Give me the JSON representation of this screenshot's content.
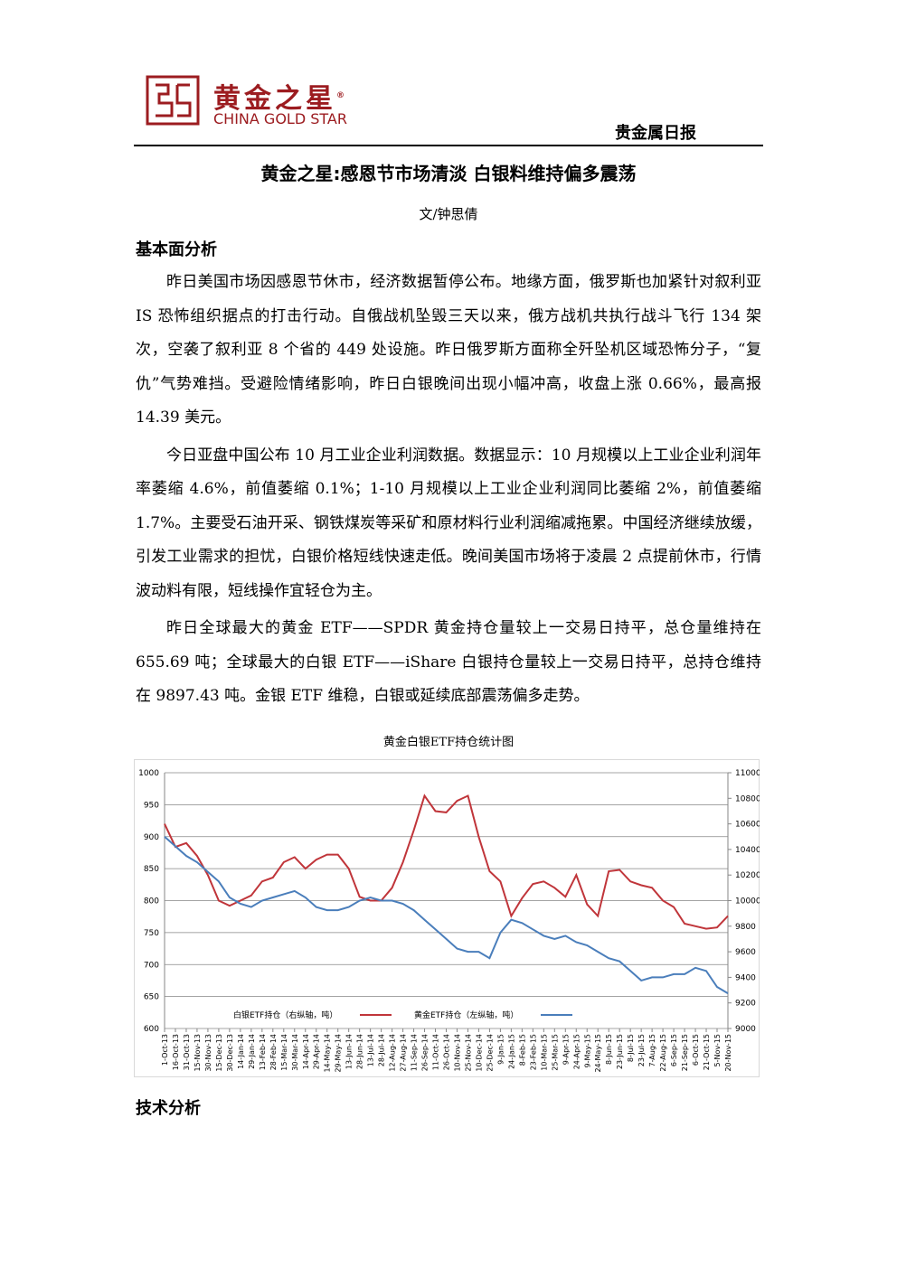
{
  "header": {
    "logo_cn": "黄金之星",
    "logo_mark": "®",
    "logo_en": "CHINA GOLD STAR",
    "report": "贵金属日报"
  },
  "title": "黄金之星:感恩节市场清淡 白银料维持偏多震荡",
  "author": "文/钟思倩",
  "sections": [
    {
      "heading": "基本面分析",
      "paragraphs": [
        "昨日美国市场因感恩节休市，经济数据暂停公布。地缘方面，俄罗斯也加紧针对叙利亚 IS 恐怖组织据点的打击行动。自俄战机坠毁三天以来，俄方战机共执行战斗飞行 134 架次，空袭了叙利亚 8 个省的 449 处设施。昨日俄罗斯方面称全歼坠机区域恐怖分子，“复仇”气势难挡。受避险情绪影响，昨日白银晚间出现小幅冲高，收盘上涨 0.66%，最高报 14.39 美元。",
        "今日亚盘中国公布 10 月工业企业利润数据。数据显示：10 月规模以上工业企业利润年率萎缩 4.6%，前值萎缩 0.1%；1-10 月规模以上工业企业利润同比萎缩 2%，前值萎缩 1.7%。主要受石油开采、钢铁煤炭等采矿和原材料行业利润缩减拖累。中国经济继续放缓，引发工业需求的担忧，白银价格短线快速走低。晚间美国市场将于凌晨 2 点提前休市，行情波动料有限，短线操作宜轻仓为主。",
        "昨日全球最大的黄金 ETF——SPDR 黄金持仓量较上一交易日持平，总仓量维持在 655.69 吨；全球最大的白银 ETF——iShare 白银持仓量较上一交易日持平，总持仓维持在 9897.43 吨。金银 ETF 维稳，白银或延续底部震荡偏多走势。"
      ]
    },
    {
      "heading": "技术分析",
      "paragraphs": []
    }
  ],
  "chart_data": {
    "type": "line",
    "title": "黄金白银ETF持仓统计图",
    "categories": [
      "1-Oct-13",
      "16-Oct-13",
      "31-Oct-13",
      "15-Nov-13",
      "30-Nov-13",
      "15-Dec-13",
      "30-Dec-13",
      "14-Jan-14",
      "29-Jan-14",
      "13-Feb-14",
      "28-Feb-14",
      "15-Mar-14",
      "30-Mar-14",
      "14-Apr-14",
      "29-Apr-14",
      "14-May-14",
      "29-May-14",
      "13-Jun-14",
      "28-Jun-14",
      "13-Jul-14",
      "28-Jul-14",
      "12-Aug-14",
      "27-Aug-14",
      "11-Sep-14",
      "26-Sep-14",
      "11-Oct-14",
      "26-Oct-14",
      "10-Nov-14",
      "25-Nov-14",
      "10-Dec-14",
      "25-Dec-14",
      "9-Jan-15",
      "24-Jan-15",
      "8-Feb-15",
      "23-Feb-15",
      "10-Mar-15",
      "25-Mar-15",
      "9-Apr-15",
      "24-Apr-15",
      "9-May-15",
      "24-May-15",
      "8-Jun-15",
      "23-Jun-15",
      "8-Jul-15",
      "23-Jul-15",
      "7-Aug-15",
      "22-Aug-15",
      "6-Sep-15",
      "21-Sep-15",
      "6-Oct-15",
      "21-Oct-15",
      "5-Nov-15",
      "20-Nov-15"
    ],
    "series": [
      {
        "name": "白银ETF持仓（右纵轴，吨）",
        "color": "#c0353a",
        "axis": "y2",
        "values": [
          10600,
          10420,
          10450,
          10350,
          10200,
          10000,
          9960,
          10000,
          10040,
          10150,
          10180,
          10300,
          10340,
          10250,
          10320,
          10360,
          10360,
          10250,
          10030,
          10000,
          10000,
          10100,
          10300,
          10550,
          10820,
          10700,
          10690,
          10780,
          10820,
          10500,
          10230,
          10150,
          9880,
          10020,
          10130,
          10150,
          10100,
          10030,
          10200,
          9970,
          9880,
          10230,
          10240,
          10150,
          10120,
          10100,
          10000,
          9950,
          9820,
          9800,
          9780,
          9790,
          9880
        ]
      },
      {
        "name": "黄金ETF持仓（左纵轴，吨）",
        "color": "#4a7ebb",
        "values": [
          900,
          885,
          870,
          860,
          845,
          830,
          805,
          795,
          790,
          800,
          805,
          810,
          815,
          805,
          790,
          785,
          785,
          790,
          800,
          805,
          800,
          800,
          795,
          785,
          770,
          755,
          740,
          725,
          720,
          720,
          710,
          750,
          770,
          765,
          755,
          745,
          740,
          745,
          735,
          730,
          720,
          710,
          705,
          690,
          675,
          680,
          680,
          685,
          685,
          695,
          690,
          665,
          655
        ]
      }
    ],
    "ylim": [
      600,
      1000
    ],
    "yticks": [
      600,
      650,
      700,
      750,
      800,
      850,
      900,
      950,
      1000
    ],
    "y2lim": [
      9000,
      11000
    ],
    "y2ticks": [
      9000,
      9200,
      9400,
      9600,
      9800,
      10000,
      10200,
      10400,
      10600,
      10800,
      11000
    ],
    "grid": true
  }
}
